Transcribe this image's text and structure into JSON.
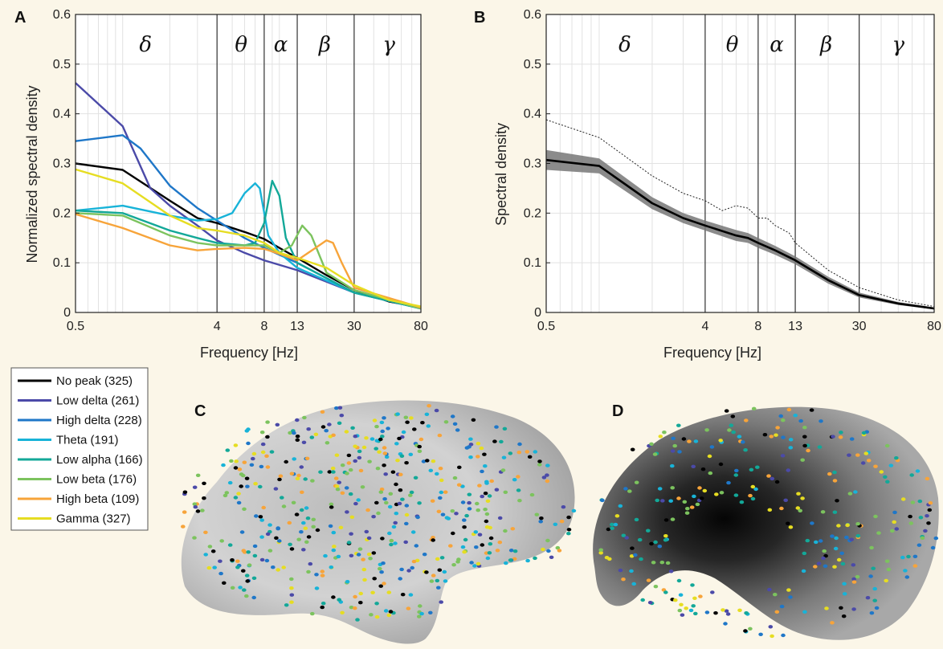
{
  "chart_data": [
    {
      "panel": "A",
      "type": "line",
      "ylabel": "Normalized spectral density",
      "xlabel": "Frequency [Hz]",
      "xscale": "log",
      "xlim": [
        0.5,
        80
      ],
      "ylim": [
        0,
        0.6
      ],
      "x_ticks": [
        "0.5",
        "4",
        "8",
        "13",
        "30",
        "80"
      ],
      "y_ticks": [
        "0",
        "0.1",
        "0.2",
        "0.3",
        "0.4",
        "0.5",
        "0.6"
      ],
      "grid": true,
      "band_boundaries": [
        4,
        8,
        13,
        30
      ],
      "bands": [
        {
          "symbol": "δ",
          "center": 1.4
        },
        {
          "symbol": "θ",
          "center": 5.7
        },
        {
          "symbol": "α",
          "center": 10.2
        },
        {
          "symbol": "β",
          "center": 19.5
        },
        {
          "symbol": "γ",
          "center": 50
        }
      ],
      "series": [
        {
          "name": "No peak (325)",
          "color": "#000000",
          "x": [
            0.5,
            1,
            2,
            3,
            4,
            6,
            8,
            10,
            13,
            20,
            30,
            50,
            80
          ],
          "values": [
            0.3,
            0.287,
            0.225,
            0.19,
            0.18,
            0.162,
            0.148,
            0.13,
            0.11,
            0.075,
            0.045,
            0.022,
            0.01
          ]
        },
        {
          "name": "Low delta (261)",
          "color": "#4b4aa8",
          "x": [
            0.5,
            1,
            1.5,
            2,
            3,
            4,
            6,
            8,
            13,
            30,
            80
          ],
          "values": [
            0.462,
            0.375,
            0.25,
            0.215,
            0.175,
            0.145,
            0.12,
            0.105,
            0.085,
            0.04,
            0.008
          ]
        },
        {
          "name": "High delta (228)",
          "color": "#1f77c8",
          "x": [
            0.5,
            1,
            1.3,
            2,
            3,
            4,
            6,
            8,
            13,
            30,
            80
          ],
          "values": [
            0.345,
            0.357,
            0.33,
            0.255,
            0.21,
            0.185,
            0.15,
            0.13,
            0.1,
            0.04,
            0.008
          ]
        },
        {
          "name": "Theta (191)",
          "color": "#18b3d8",
          "x": [
            0.5,
            1,
            2,
            3,
            4,
            5,
            6,
            7,
            7.5,
            8.5,
            10,
            13,
            30,
            80
          ],
          "values": [
            0.205,
            0.215,
            0.195,
            0.185,
            0.188,
            0.2,
            0.24,
            0.26,
            0.25,
            0.155,
            0.12,
            0.09,
            0.04,
            0.008
          ]
        },
        {
          "name": "Low alpha (166)",
          "color": "#13a898",
          "x": [
            0.5,
            1,
            2,
            3,
            4,
            6,
            7,
            8,
            9,
            10,
            11,
            13,
            30,
            80
          ],
          "values": [
            0.205,
            0.2,
            0.165,
            0.15,
            0.14,
            0.135,
            0.14,
            0.18,
            0.265,
            0.235,
            0.15,
            0.1,
            0.04,
            0.008
          ]
        },
        {
          "name": "Low beta (176)",
          "color": "#7cc35e",
          "x": [
            0.5,
            1,
            2,
            3,
            4,
            6,
            8,
            10,
            12,
            14,
            16,
            20,
            30,
            80
          ],
          "values": [
            0.2,
            0.195,
            0.155,
            0.14,
            0.135,
            0.135,
            0.135,
            0.12,
            0.135,
            0.175,
            0.155,
            0.08,
            0.045,
            0.008
          ]
        },
        {
          "name": "High beta (109)",
          "color": "#f7a43a",
          "x": [
            0.5,
            1,
            2,
            3,
            4,
            6,
            8,
            10,
            13,
            17,
            20,
            22,
            25,
            30,
            80
          ],
          "values": [
            0.198,
            0.17,
            0.135,
            0.125,
            0.128,
            0.13,
            0.128,
            0.118,
            0.105,
            0.13,
            0.145,
            0.14,
            0.1,
            0.05,
            0.01
          ]
        },
        {
          "name": "Gamma (327)",
          "color": "#e6dd22",
          "x": [
            0.5,
            1,
            2,
            3,
            4,
            6,
            8,
            10,
            13,
            20,
            30,
            50,
            80
          ],
          "values": [
            0.288,
            0.26,
            0.195,
            0.17,
            0.165,
            0.155,
            0.14,
            0.12,
            0.11,
            0.09,
            0.055,
            0.025,
            0.012
          ]
        }
      ]
    },
    {
      "panel": "B",
      "type": "line",
      "ylabel": "Spectral density",
      "xlabel": "Frequency [Hz]",
      "xscale": "log",
      "xlim": [
        0.5,
        80
      ],
      "ylim": [
        0,
        0.6
      ],
      "x_ticks": [
        "0.5",
        "4",
        "8",
        "13",
        "30",
        "80"
      ],
      "y_ticks": [
        "0",
        "0.1",
        "0.2",
        "0.3",
        "0.4",
        "0.5",
        "0.6"
      ],
      "grid": true,
      "band_boundaries": [
        4,
        8,
        13,
        30
      ],
      "bands": [
        {
          "symbol": "δ",
          "center": 1.4
        },
        {
          "symbol": "θ",
          "center": 5.7
        },
        {
          "symbol": "α",
          "center": 10.2
        },
        {
          "symbol": "β",
          "center": 19.5
        },
        {
          "symbol": "γ",
          "center": 50
        }
      ],
      "series": [
        {
          "style": "mean",
          "color": "#000000",
          "x": [
            0.5,
            1,
            2,
            3,
            4,
            6,
            7,
            8,
            10,
            13,
            20,
            30,
            50,
            80
          ],
          "values": [
            0.307,
            0.295,
            0.22,
            0.19,
            0.175,
            0.155,
            0.15,
            0.14,
            0.125,
            0.105,
            0.065,
            0.035,
            0.018,
            0.008
          ]
        },
        {
          "style": "confidence-band",
          "color": "#777777",
          "x": [
            0.5,
            1,
            2,
            3,
            4,
            6,
            7,
            8,
            10,
            13,
            20,
            30,
            50,
            80
          ],
          "upper": [
            0.327,
            0.31,
            0.232,
            0.2,
            0.185,
            0.166,
            0.16,
            0.15,
            0.134,
            0.113,
            0.072,
            0.04,
            0.021,
            0.01
          ],
          "lower": [
            0.287,
            0.28,
            0.208,
            0.18,
            0.165,
            0.144,
            0.14,
            0.13,
            0.116,
            0.097,
            0.058,
            0.03,
            0.015,
            0.006
          ]
        },
        {
          "style": "dotted",
          "color": "#222222",
          "x": [
            0.5,
            1,
            2,
            3,
            4,
            5,
            6,
            7,
            8,
            9,
            10,
            12,
            13,
            20,
            30,
            50,
            80
          ],
          "values": [
            0.388,
            0.352,
            0.275,
            0.24,
            0.225,
            0.205,
            0.215,
            0.21,
            0.19,
            0.19,
            0.175,
            0.16,
            0.14,
            0.085,
            0.05,
            0.025,
            0.012
          ]
        }
      ]
    }
  ],
  "panel_letters": {
    "a": "A",
    "b": "B",
    "c": "C",
    "d": "D"
  },
  "legend": [
    {
      "label": "No peak (325)",
      "color": "#000000"
    },
    {
      "label": "Low delta (261)",
      "color": "#4b4aa8"
    },
    {
      "label": "High delta (228)",
      "color": "#1f77c8"
    },
    {
      "label": "Theta (191)",
      "color": "#18b3d8"
    },
    {
      "label": "Low alpha (166)",
      "color": "#13a898"
    },
    {
      "label": "Low beta (176)",
      "color": "#7cc35e"
    },
    {
      "label": "High beta (109)",
      "color": "#f7a43a"
    },
    {
      "label": "Gamma (327)",
      "color": "#e6dd22"
    }
  ],
  "brains": {
    "c": {
      "view": "lateral",
      "surface_color": "#c9c9c9"
    },
    "d": {
      "view": "medial",
      "surface_color": "#3a3a3a"
    }
  }
}
